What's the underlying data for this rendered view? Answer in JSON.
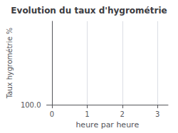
{
  "chart_data": {
    "type": "line",
    "title": "Evolution du taux d'hygrométrie",
    "xlabel": "heure par heure",
    "ylabel": "Taux hygrométrie %",
    "xlim": [
      -0.15,
      3.3
    ],
    "xticks": [
      0,
      1,
      2,
      3
    ],
    "ylim": [
      100.0,
      110.0
    ],
    "yticks": [
      {
        "value": 100.0,
        "label": "100.0"
      }
    ],
    "grid": true
  }
}
